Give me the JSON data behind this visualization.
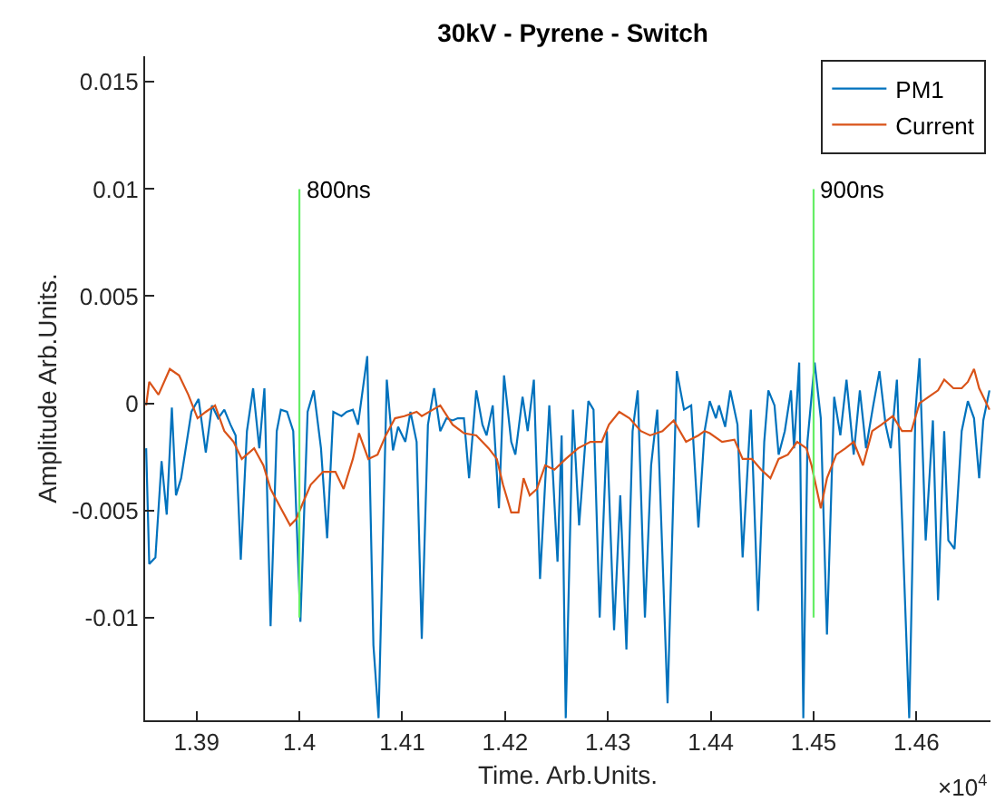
{
  "chart_data": {
    "type": "line",
    "title": "30kV - Pyrene - Switch",
    "xlabel": "Time. Arb.Units.",
    "ylabel": "Amplitude Arb.Units.",
    "xlim": [
      1.385,
      1.4672
    ],
    "ylim": [
      -0.0148,
      0.0162
    ],
    "xticks": [
      1.39,
      1.4,
      1.41,
      1.42,
      1.43,
      1.44,
      1.45,
      1.46
    ],
    "yticks": [
      -0.01,
      -0.005,
      0,
      0.005,
      0.01,
      0.015
    ],
    "legend": "top right",
    "marker": "none",
    "line_style": "solid",
    "annotations": [
      "×10$^{4}$",
      {
        "text": "800ns",
        "x": 1.4,
        "y": 0.01
      },
      {
        "text": "900ns",
        "x": 1.45,
        "y": 0.01
      }
    ],
    "series": [
      {
        "name": "PM1",
        "color": "#0072bd",
        "x": [
          1.3851,
          1.3854,
          1.386,
          1.3866,
          1.3871,
          1.3876,
          1.388,
          1.3885,
          1.3895,
          1.3902,
          1.3909,
          1.3915,
          1.3921,
          1.3927,
          1.3933,
          1.3938,
          1.3943,
          1.3949,
          1.3955,
          1.3961,
          1.3966,
          1.3972,
          1.3978,
          1.3982,
          1.3988,
          1.3994,
          1.4001,
          1.4008,
          1.4014,
          1.4021,
          1.4027,
          1.4033,
          1.4041,
          1.4046,
          1.4052,
          1.4057,
          1.4066,
          1.4072,
          1.4077,
          1.4085,
          1.4091,
          1.4096,
          1.4103,
          1.4108,
          1.4114,
          1.4119,
          1.4125,
          1.4131,
          1.4137,
          1.4143,
          1.4149,
          1.4154,
          1.416,
          1.4165,
          1.4172,
          1.4178,
          1.4182,
          1.4188,
          1.4194,
          1.4199,
          1.4206,
          1.421,
          1.4217,
          1.4222,
          1.4228,
          1.4234,
          1.4243,
          1.4251,
          1.4255,
          1.4259,
          1.4266,
          1.4272,
          1.4281,
          1.4286,
          1.4292,
          1.4299,
          1.4306,
          1.4312,
          1.4318,
          1.4324,
          1.4329,
          1.4336,
          1.4342,
          1.4348,
          1.4353,
          1.4358,
          1.4367,
          1.4374,
          1.4381,
          1.4388,
          1.4394,
          1.4399,
          1.4405,
          1.4408,
          1.4414,
          1.4419,
          1.4426,
          1.4431,
          1.4439,
          1.4446,
          1.4452,
          1.4456,
          1.4462,
          1.4466,
          1.4472,
          1.4478,
          1.4481,
          1.4486,
          1.449,
          1.4494,
          1.4501,
          1.4507,
          1.4513,
          1.452,
          1.4526,
          1.4532,
          1.4539,
          1.4545,
          1.4551,
          1.4558,
          1.4564,
          1.457,
          1.4575,
          1.4581,
          1.4586,
          1.4593,
          1.4599,
          1.4603,
          1.4609,
          1.4616,
          1.4621,
          1.4627,
          1.4631,
          1.4637,
          1.4644,
          1.465,
          1.4656,
          1.4661,
          1.4665,
          1.4671
        ],
        "values": [
          -0.0021,
          -0.0075,
          -0.0072,
          -0.0027,
          -0.0052,
          -0.0002,
          -0.0043,
          -0.0035,
          -0.0004,
          0.0002,
          -0.0023,
          -0.0001,
          -0.0007,
          -0.0003,
          -0.001,
          -0.0015,
          -0.0073,
          -0.0013,
          0.0007,
          -0.0021,
          0.0007,
          -0.0104,
          -0.0013,
          -0.0003,
          -0.0004,
          -0.0013,
          -0.0102,
          -0.0004,
          0.0006,
          -0.0021,
          -0.0063,
          -0.0004,
          -0.0006,
          -0.0004,
          -0.0003,
          -0.001,
          0.0022,
          -0.0113,
          -0.0147,
          0.0011,
          -0.0022,
          -0.0011,
          -0.0018,
          -0.0004,
          -0.0018,
          -0.011,
          -0.001,
          0.0007,
          -0.0013,
          -0.0007,
          -0.0008,
          -0.0007,
          -0.0007,
          -0.0035,
          0.0006,
          -0.001,
          -0.0015,
          -0.0001,
          -0.0049,
          0.0013,
          -0.0018,
          -0.0024,
          0.0003,
          -0.0013,
          0.0011,
          -0.0082,
          -0.0001,
          -0.0074,
          -0.0015,
          -0.0147,
          -0.0003,
          -0.0057,
          0.0001,
          -0.0003,
          -0.01,
          -0.0013,
          -0.0106,
          -0.0043,
          -0.0115,
          -0.0013,
          0.0006,
          -0.01,
          -0.0029,
          -0.0003,
          -0.0071,
          -0.014,
          0.0015,
          -0.0003,
          -0.0001,
          -0.0058,
          -0.0013,
          0.0001,
          -0.0007,
          -0.0001,
          -0.0011,
          0.0006,
          -0.001,
          -0.0072,
          -0.0003,
          -0.0097,
          -0.0018,
          0.0006,
          -0.0001,
          -0.0024,
          -0.0013,
          0.0006,
          -0.0021,
          0.0019,
          -0.0147,
          -0.0018,
          0.0019,
          -0.0007,
          -0.0108,
          0.0003,
          -0.0015,
          0.0011,
          -0.0024,
          0.0006,
          -0.0021,
          -0.0001,
          0.0015,
          -0.001,
          -0.0021,
          0.0011,
          -0.0054,
          -0.0147,
          -0.0004,
          0.0021,
          -0.0064,
          -0.0008,
          -0.0092,
          -0.0013,
          -0.0064,
          -0.0068,
          -0.0013,
          0.0001,
          -0.0007,
          -0.0035,
          -0.0008,
          0.0006
        ]
      },
      {
        "name": "Current",
        "color": "#d95319",
        "x": [
          1.3851,
          1.3854,
          1.3863,
          1.3874,
          1.3883,
          1.3892,
          1.3901,
          1.3909,
          1.3918,
          1.3927,
          1.3936,
          1.3944,
          1.3956,
          1.3965,
          1.3972,
          1.3982,
          1.3991,
          1.3997,
          1.4003,
          1.4011,
          1.4023,
          1.4035,
          1.4043,
          1.4052,
          1.4058,
          1.4067,
          1.4076,
          1.4084,
          1.4093,
          1.4102,
          1.4114,
          1.4119,
          1.4137,
          1.4149,
          1.416,
          1.4172,
          1.4184,
          1.4192,
          1.4198,
          1.4206,
          1.4213,
          1.4218,
          1.4224,
          1.4231,
          1.4239,
          1.4248,
          1.4259,
          1.4271,
          1.4283,
          1.4294,
          1.4301,
          1.4311,
          1.4321,
          1.4332,
          1.4341,
          1.4353,
          1.4364,
          1.4376,
          1.4388,
          1.4394,
          1.4399,
          1.4411,
          1.4423,
          1.4431,
          1.444,
          1.4449,
          1.4458,
          1.4466,
          1.4475,
          1.4484,
          1.4493,
          1.4498,
          1.4507,
          1.4513,
          1.4522,
          1.4531,
          1.4539,
          1.4548,
          1.4557,
          1.4566,
          1.4577,
          1.4586,
          1.4595,
          1.4603,
          1.4612,
          1.4621,
          1.4627,
          1.4636,
          1.4644,
          1.465,
          1.4656,
          1.4661,
          1.4671
        ],
        "values": [
          -0.0001,
          0.001,
          0.0004,
          0.0016,
          0.0013,
          0.0004,
          -0.0007,
          -0.0004,
          -0.0001,
          -0.0013,
          -0.0018,
          -0.0026,
          -0.0021,
          -0.0029,
          -0.004,
          -0.0049,
          -0.0057,
          -0.0054,
          -0.0047,
          -0.0038,
          -0.0032,
          -0.0032,
          -0.004,
          -0.0026,
          -0.0014,
          -0.0026,
          -0.0024,
          -0.0015,
          -0.0007,
          -0.0006,
          -0.0004,
          -0.0006,
          -0.0001,
          -0.001,
          -0.0014,
          -0.0015,
          -0.0021,
          -0.0026,
          -0.0038,
          -0.0051,
          -0.0051,
          -0.0035,
          -0.0043,
          -0.004,
          -0.0029,
          -0.0031,
          -0.0026,
          -0.0021,
          -0.0018,
          -0.0018,
          -0.001,
          -0.0004,
          -0.0007,
          -0.0013,
          -0.0015,
          -0.0013,
          -0.0008,
          -0.0018,
          -0.0015,
          -0.0013,
          -0.0014,
          -0.0018,
          -0.0017,
          -0.0026,
          -0.0026,
          -0.0031,
          -0.0035,
          -0.0026,
          -0.0024,
          -0.0018,
          -0.0021,
          -0.0029,
          -0.0049,
          -0.0035,
          -0.0024,
          -0.0021,
          -0.0018,
          -0.0029,
          -0.0013,
          -0.001,
          -0.0006,
          -0.0013,
          -0.0013,
          0.0,
          0.0003,
          0.0006,
          0.0011,
          0.0007,
          0.0007,
          0.001,
          0.0016,
          0.0007,
          -0.0003
        ]
      },
      {
        "color": "#66ee66",
        "x": [
          1.4,
          1.4
        ],
        "values": [
          -0.01,
          0.01
        ]
      },
      {
        "color": "#66ee66",
        "x": [
          1.45,
          1.45
        ],
        "values": [
          -0.01,
          0.01
        ]
      }
    ]
  }
}
